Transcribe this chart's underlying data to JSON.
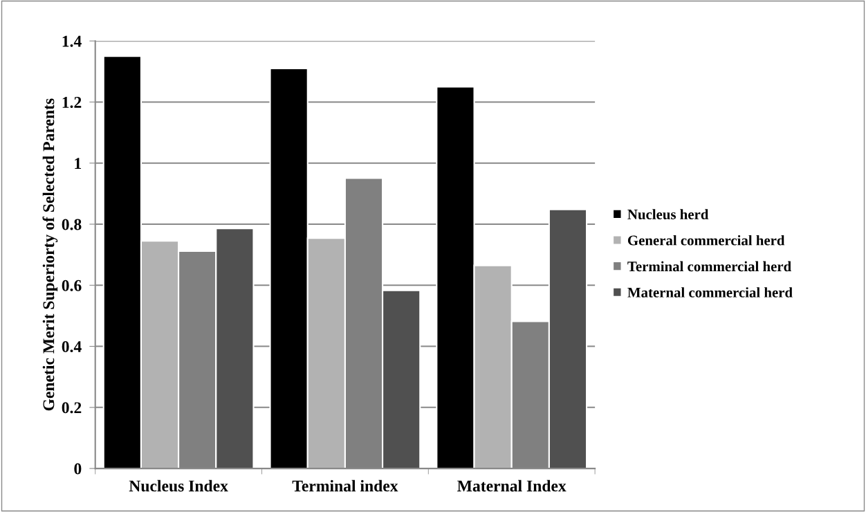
{
  "chart_data": {
    "type": "bar",
    "ylabel": "Genetic Merit Superiorty of Selected Parents",
    "categories": [
      "Nucleus Index",
      "Terminal index",
      "Maternal Index"
    ],
    "series": [
      {
        "name": "Nucleus herd",
        "color": "#000000",
        "values": [
          1.35,
          1.31,
          1.25
        ]
      },
      {
        "name": "General commercial herd",
        "color": "#b2b2b2",
        "values": [
          0.745,
          0.754,
          0.665
        ]
      },
      {
        "name": "Terminal commercial herd",
        "color": "#808080",
        "values": [
          0.712,
          0.951,
          0.482
        ]
      },
      {
        "name": "Maternal commercial herd",
        "color": "#505050",
        "values": [
          0.786,
          0.583,
          0.848
        ]
      }
    ],
    "ylim": [
      0,
      1.4
    ],
    "yticks": [
      0,
      0.2,
      0.4,
      0.6,
      0.8,
      1,
      1.2,
      1.4
    ],
    "grid": "y",
    "legend": "right"
  }
}
